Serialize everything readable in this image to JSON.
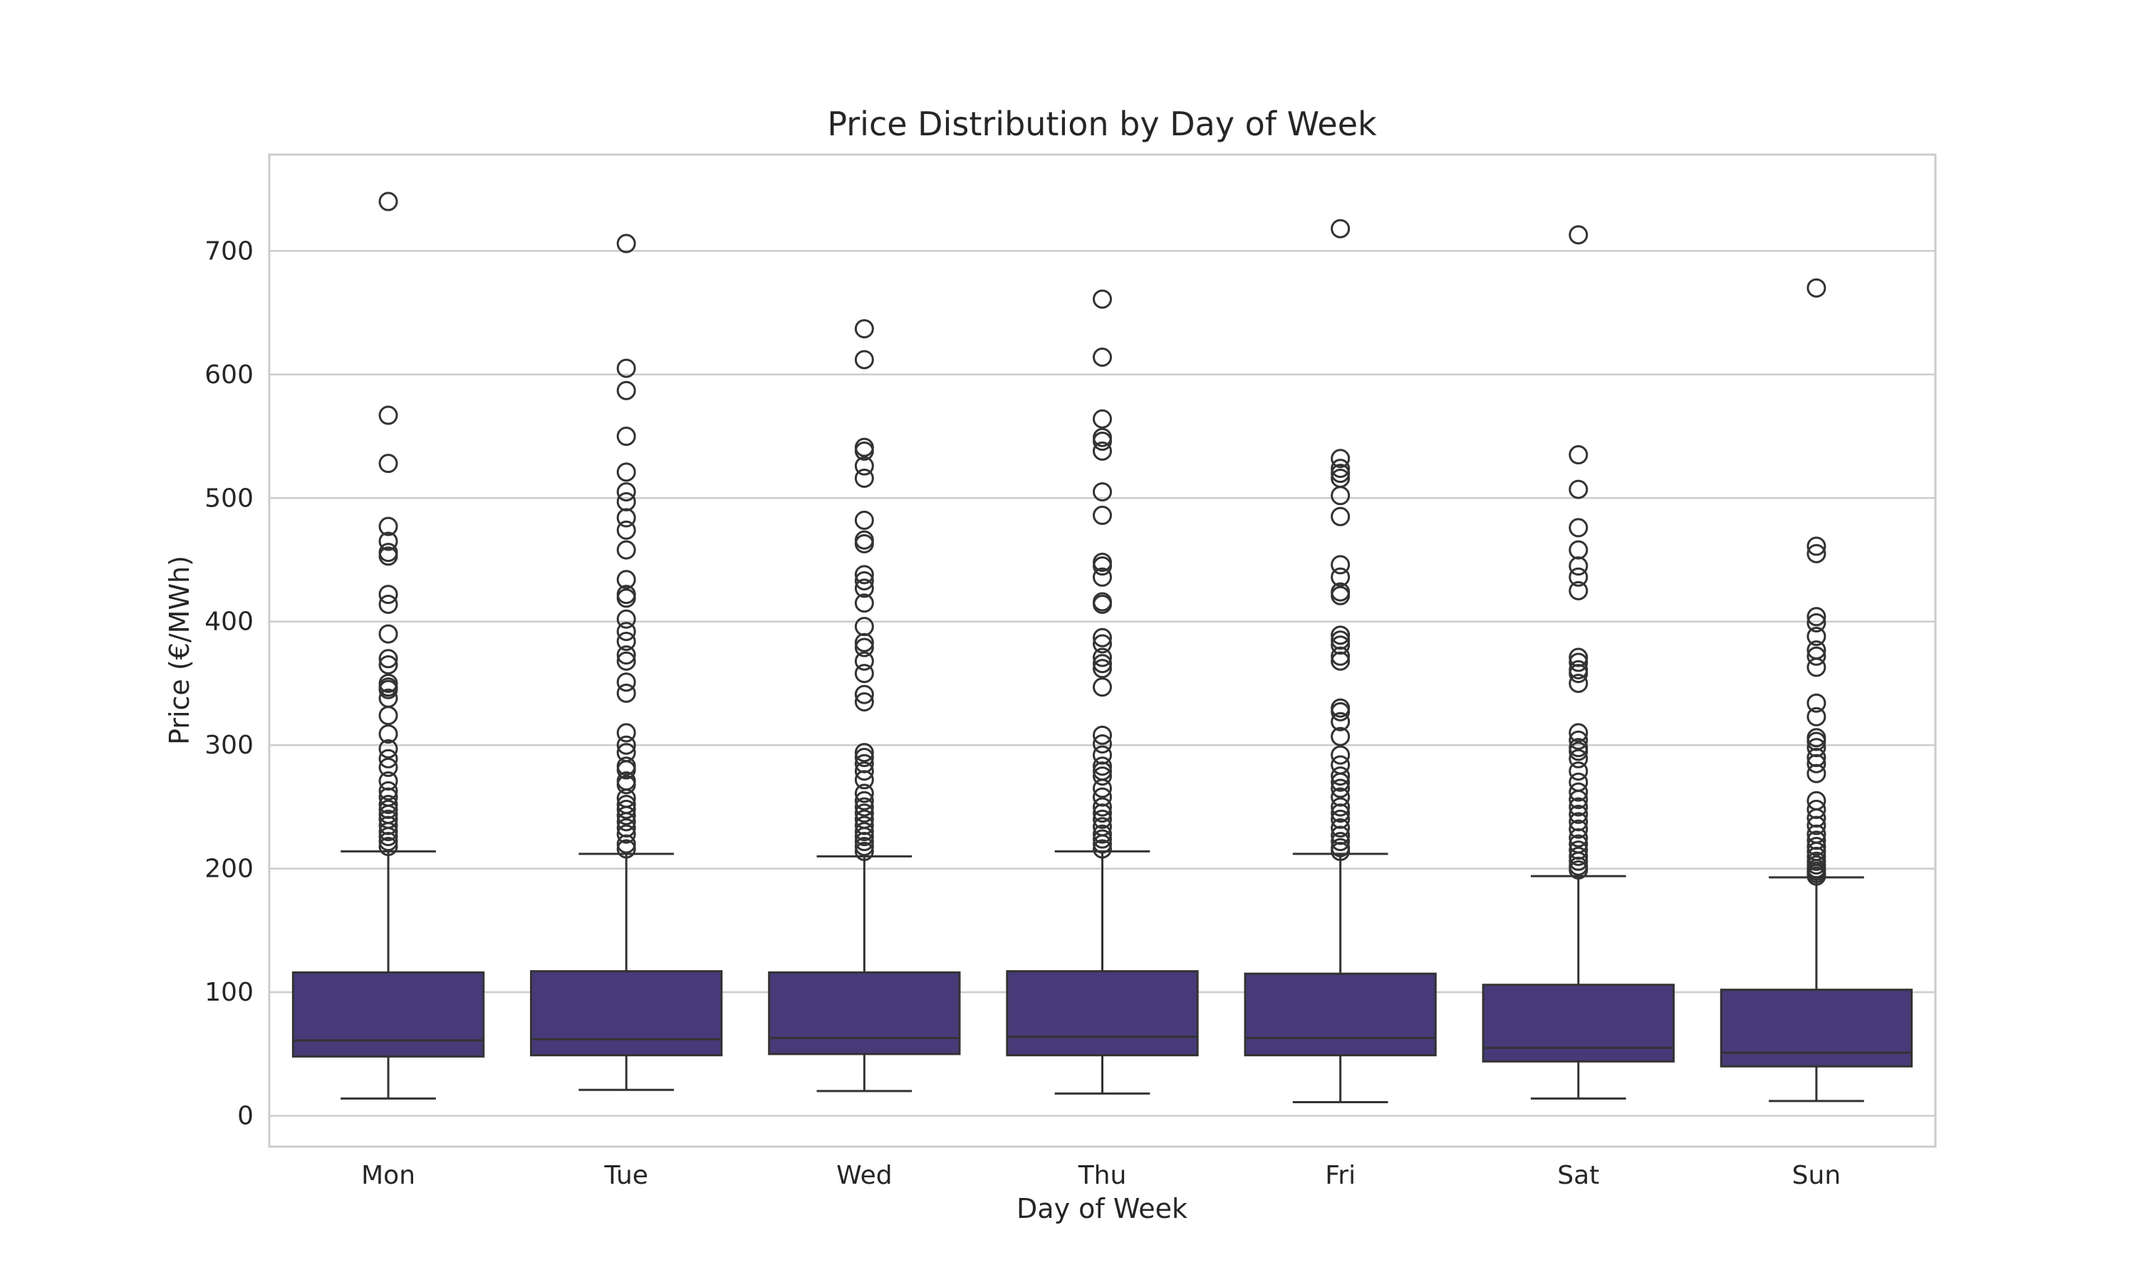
{
  "chart_data": {
    "type": "box",
    "title": "Price Distribution by Day of Week",
    "xlabel": "Day of Week",
    "ylabel": "Price (€/MWh)",
    "ylim": [
      -25,
      778
    ],
    "yticks": [
      0,
      100,
      200,
      300,
      400,
      500,
      600,
      700
    ],
    "grid": true,
    "box_color": "#483a78",
    "categories": [
      "Mon",
      "Tue",
      "Wed",
      "Thu",
      "Fri",
      "Sat",
      "Sun"
    ],
    "boxes": [
      {
        "name": "Mon",
        "whisker_low": 14,
        "q1": 48,
        "median": 61,
        "q3": 116,
        "whisker_high": 214,
        "outliers": [
          740,
          567,
          528,
          477,
          465,
          456,
          453,
          422,
          414,
          390,
          370,
          365,
          350,
          347,
          345,
          338,
          324,
          309,
          297,
          289,
          282,
          271,
          263,
          258,
          252,
          248,
          244,
          240,
          235,
          230,
          226,
          222,
          218
        ]
      },
      {
        "name": "Tue",
        "whisker_low": 21,
        "q1": 49,
        "median": 62,
        "q3": 117,
        "whisker_high": 212,
        "outliers": [
          706,
          605,
          587,
          550,
          521,
          505,
          497,
          484,
          474,
          458,
          434,
          422,
          419,
          402,
          392,
          384,
          373,
          368,
          351,
          342,
          310,
          300,
          294,
          283,
          280,
          271,
          268,
          257,
          252,
          248,
          243,
          238,
          233,
          228,
          220,
          216
        ]
      },
      {
        "name": "Wed",
        "whisker_low": 20,
        "q1": 50,
        "median": 63,
        "q3": 116,
        "whisker_high": 210,
        "outliers": [
          637,
          612,
          541,
          538,
          526,
          516,
          482,
          466,
          463,
          438,
          433,
          427,
          415,
          396,
          383,
          379,
          368,
          358,
          341,
          335,
          294,
          290,
          285,
          279,
          272,
          261,
          255,
          250,
          245,
          240,
          235,
          230,
          226,
          222,
          218,
          214
        ]
      },
      {
        "name": "Thu",
        "whisker_low": 18,
        "q1": 49,
        "median": 64,
        "q3": 117,
        "whisker_high": 214,
        "outliers": [
          661,
          614,
          564,
          549,
          546,
          538,
          505,
          486,
          448,
          445,
          436,
          416,
          414,
          387,
          382,
          371,
          366,
          362,
          347,
          308,
          301,
          292,
          283,
          279,
          275,
          265,
          258,
          250,
          245,
          240,
          234,
          228,
          224,
          220,
          216
        ]
      },
      {
        "name": "Fri",
        "whisker_low": 11,
        "q1": 49,
        "median": 63,
        "q3": 115,
        "whisker_high": 212,
        "outliers": [
          718,
          532,
          524,
          520,
          516,
          502,
          485,
          446,
          436,
          424,
          421,
          389,
          385,
          381,
          372,
          368,
          330,
          327,
          319,
          307,
          292,
          284,
          275,
          270,
          265,
          258,
          250,
          245,
          240,
          233,
          227,
          222,
          217,
          214
        ]
      },
      {
        "name": "Sat",
        "whisker_low": 14,
        "q1": 44,
        "median": 55,
        "q3": 106,
        "whisker_high": 194,
        "outliers": [
          713,
          535,
          507,
          476,
          458,
          445,
          436,
          425,
          371,
          367,
          361,
          358,
          350,
          310,
          304,
          298,
          295,
          289,
          279,
          270,
          262,
          256,
          250,
          244,
          238,
          232,
          225,
          220,
          215,
          210,
          206,
          202,
          199
        ]
      },
      {
        "name": "Sun",
        "whisker_low": 12,
        "q1": 40,
        "median": 51,
        "q3": 102,
        "whisker_high": 193,
        "outliers": [
          670,
          461,
          455,
          404,
          399,
          388,
          377,
          372,
          363,
          334,
          323,
          306,
          303,
          298,
          290,
          285,
          277,
          255,
          248,
          241,
          235,
          228,
          223,
          218,
          214,
          210,
          206,
          203,
          200,
          198,
          196,
          194
        ]
      }
    ]
  }
}
